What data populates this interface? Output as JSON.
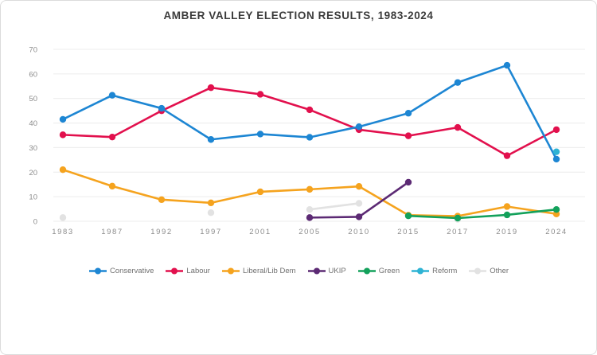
{
  "window": {
    "background": "#ffffff",
    "border_color": "#dcdcdc"
  },
  "chart_data": {
    "type": "line",
    "title": "AMBER VALLEY ELECTION RESULTS, 1983-2024",
    "xlabel": "",
    "ylabel": "",
    "categories": [
      "1983",
      "1987",
      "1992",
      "1997",
      "2001",
      "2005",
      "2010",
      "2015",
      "2017",
      "2019",
      "2024"
    ],
    "series": [
      {
        "name": "Conservative",
        "color": "#1d86d3",
        "values": [
          41.5,
          51.3,
          46.0,
          33.3,
          35.5,
          34.2,
          38.5,
          44.0,
          56.5,
          63.5,
          25.3
        ]
      },
      {
        "name": "Labour",
        "color": "#e2104d",
        "values": [
          35.2,
          34.3,
          45.0,
          54.4,
          51.7,
          45.4,
          37.3,
          34.8,
          38.2,
          26.7,
          37.3
        ]
      },
      {
        "name": "Liberal/Lib Dem",
        "color": "#f5a31e",
        "values": [
          21.0,
          14.3,
          8.8,
          7.5,
          12.0,
          13.0,
          14.2,
          2.5,
          2.1,
          6.0,
          3.0
        ]
      },
      {
        "name": "UKIP",
        "color": "#5c2a74",
        "values": [
          null,
          null,
          null,
          null,
          null,
          1.5,
          1.8,
          15.9,
          null,
          null,
          null
        ]
      },
      {
        "name": "Green",
        "color": "#13a15b",
        "values": [
          null,
          null,
          null,
          null,
          null,
          null,
          null,
          2.2,
          1.3,
          2.6,
          4.8
        ]
      },
      {
        "name": "Reform",
        "color": "#2eb3d4",
        "values": [
          null,
          null,
          null,
          null,
          null,
          null,
          null,
          null,
          null,
          null,
          28.3
        ]
      },
      {
        "name": "Other",
        "color": "#e2e2e2",
        "values": [
          1.5,
          null,
          null,
          3.5,
          null,
          4.8,
          7.3,
          null,
          0.8,
          null,
          null
        ]
      }
    ],
    "ylim": [
      0,
      70
    ],
    "ytick_step": 10,
    "yticks": [
      0,
      10,
      20,
      30,
      40,
      50,
      60,
      70
    ],
    "grid": true,
    "legend_position": "bottom",
    "draw_order": [
      "Other",
      "Liberal/Lib Dem",
      "UKIP",
      "Green",
      "Labour",
      "Conservative",
      "Reform"
    ]
  },
  "styles": {
    "grid_color": "#ececec",
    "axis_text_color": "#8c8c8c",
    "legend_text_color": "#707070",
    "title_color": "#3b3b3b"
  }
}
